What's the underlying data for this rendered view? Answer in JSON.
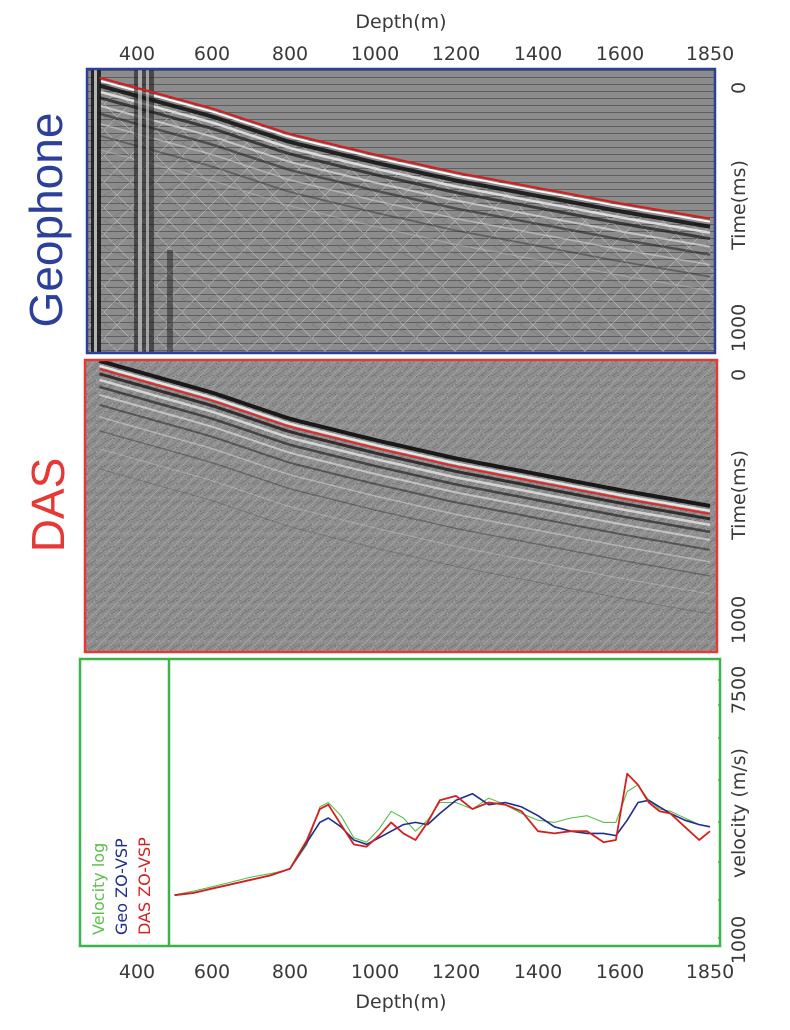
{
  "colors": {
    "geophone": "#2b3f9b",
    "das": "#e53935",
    "velocity_log": "#5cbf4a",
    "geo_zovsp": "#1f2d8c",
    "das_zovsp": "#d42020",
    "frame_green": "#3cb44b"
  },
  "chart_data": [
    {
      "type": "heatmap",
      "panel_label": "Geophone",
      "title": "",
      "xlabel": "Depth(m)",
      "ylabel": "Time(ms)",
      "xticks": [
        "400",
        "600",
        "800",
        "1000",
        "1200",
        "1400",
        "1600",
        "1850"
      ],
      "yticks": [
        "0",
        "1000"
      ],
      "xlim": [
        300,
        1850
      ],
      "ylim": [
        0,
        1100
      ],
      "first_break": {
        "depth": [
          300,
          600,
          800,
          1000,
          1200,
          1400,
          1600,
          1850
        ],
        "time": [
          30,
          150,
          250,
          330,
          400,
          460,
          520,
          580
        ]
      }
    },
    {
      "type": "heatmap",
      "panel_label": "DAS",
      "title": "",
      "xlabel": "",
      "ylabel": "Time(ms)",
      "yticks": [
        "0",
        "1000"
      ],
      "xlim": [
        300,
        1850
      ],
      "ylim": [
        0,
        1100
      ],
      "first_break": {
        "depth": [
          300,
          600,
          800,
          1000,
          1200,
          1400,
          1600,
          1850
        ],
        "time": [
          30,
          150,
          250,
          330,
          400,
          460,
          520,
          580
        ]
      }
    },
    {
      "type": "line",
      "title": "",
      "xlabel": "Depth(m)",
      "ylabel": "velocity (m/s)",
      "xticks": [
        "400",
        "600",
        "800",
        "1000",
        "1200",
        "1400",
        "1600",
        "1850"
      ],
      "yticks": [
        "1000",
        "7500"
      ],
      "xlim": [
        300,
        1850
      ],
      "ylim": [
        1000,
        7500
      ],
      "legend": "bottom-left",
      "legend_items": [
        "Velocity log",
        "Geo ZO-VSP",
        "DAS ZO-VSP"
      ],
      "series": [
        {
          "name": "Velocity log",
          "x": [
            500,
            550,
            600,
            650,
            700,
            750,
            800,
            840,
            870,
            890,
            920,
            950,
            980,
            1010,
            1040,
            1070,
            1100,
            1130,
            1160,
            1200,
            1240,
            1280,
            1320,
            1360,
            1400,
            1440,
            1480,
            1520,
            1560,
            1590,
            1620,
            1650,
            1680,
            1710,
            1740,
            1780,
            1820,
            1850
          ],
          "y": [
            2160,
            2240,
            2340,
            2450,
            2560,
            2640,
            2740,
            3300,
            4150,
            4250,
            3950,
            3450,
            3350,
            3650,
            4050,
            3900,
            3600,
            3850,
            4250,
            4250,
            4100,
            4350,
            4200,
            4000,
            3850,
            3800,
            3900,
            3950,
            3800,
            3800,
            4500,
            4650,
            4300,
            4100,
            4050,
            3900,
            3750,
            3700
          ]
        },
        {
          "name": "Geo ZO-VSP",
          "x": [
            500,
            550,
            600,
            650,
            700,
            750,
            800,
            840,
            870,
            890,
            920,
            950,
            980,
            1010,
            1040,
            1070,
            1100,
            1130,
            1160,
            1200,
            1240,
            1280,
            1320,
            1360,
            1400,
            1440,
            1480,
            1520,
            1560,
            1590,
            1620,
            1650,
            1680,
            1710,
            1740,
            1780,
            1820,
            1850
          ],
          "y": [
            2150,
            2200,
            2300,
            2400,
            2500,
            2600,
            2750,
            3350,
            3800,
            3900,
            3700,
            3400,
            3300,
            3450,
            3600,
            3750,
            3800,
            3750,
            4000,
            4300,
            4450,
            4200,
            4250,
            4150,
            3950,
            3700,
            3600,
            3550,
            3550,
            3500,
            3850,
            4250,
            4300,
            4150,
            4000,
            3850,
            3750,
            3700
          ]
        },
        {
          "name": "DAS ZO-VSP",
          "x": [
            500,
            550,
            600,
            650,
            700,
            750,
            800,
            840,
            870,
            890,
            920,
            950,
            980,
            1010,
            1040,
            1070,
            1100,
            1130,
            1160,
            1200,
            1240,
            1280,
            1320,
            1360,
            1400,
            1440,
            1480,
            1520,
            1560,
            1590,
            1620,
            1650,
            1680,
            1710,
            1740,
            1780,
            1820,
            1850
          ],
          "y": [
            2150,
            2200,
            2300,
            2400,
            2500,
            2600,
            2750,
            3400,
            4100,
            4200,
            3750,
            3300,
            3250,
            3500,
            3800,
            3550,
            3400,
            3800,
            4300,
            4400,
            4100,
            4250,
            4200,
            4050,
            3600,
            3550,
            3600,
            3600,
            3350,
            3400,
            4900,
            4650,
            4250,
            4050,
            4000,
            3700,
            3400,
            3600
          ]
        }
      ]
    }
  ]
}
